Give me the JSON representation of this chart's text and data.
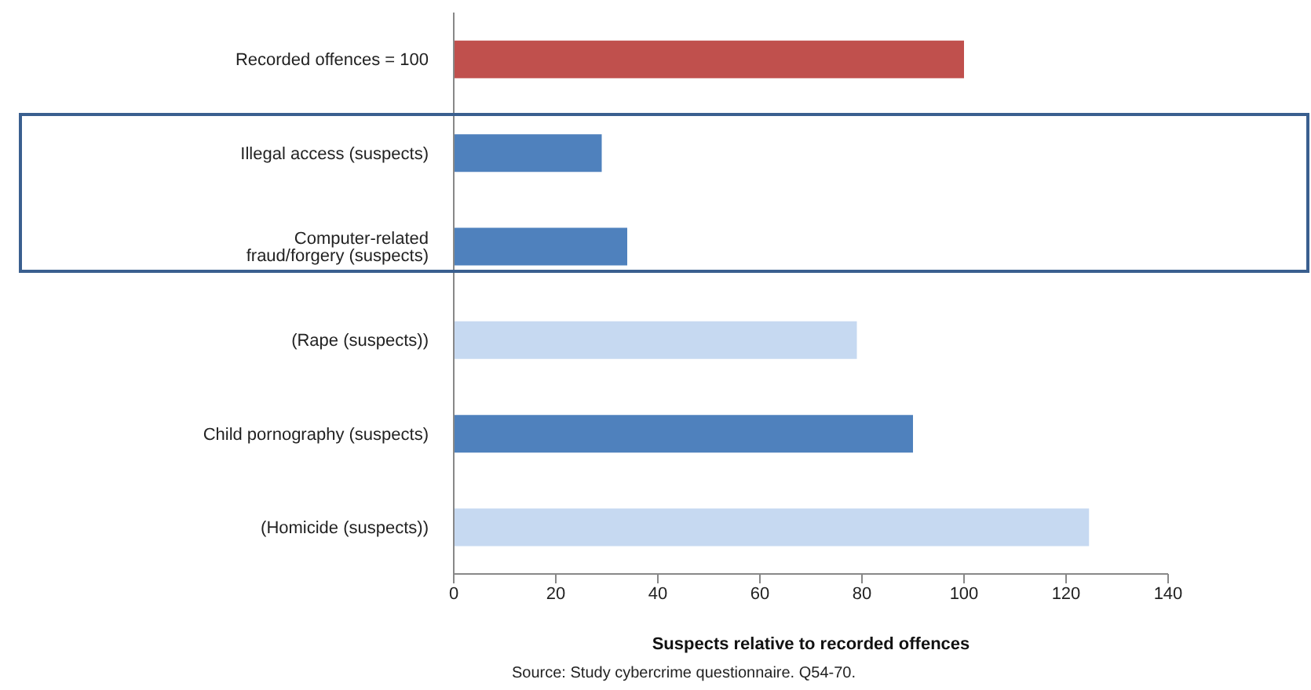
{
  "chart_data": {
    "type": "bar",
    "orientation": "horizontal",
    "categories": [
      "Recorded offences = 100",
      "Illegal access (suspects)",
      "Computer-related fraud/forgery (suspects)",
      "(Rape (suspects))",
      "Child pornography (suspects)",
      "(Homicide (suspects))"
    ],
    "values": [
      100,
      29,
      34,
      79,
      90,
      124.5
    ],
    "colors": [
      "#c0504d",
      "#4f81bd",
      "#4f81bd",
      "#c6d9f1",
      "#4f81bd",
      "#c6d9f1"
    ],
    "xlim": [
      0,
      140
    ],
    "xticks": [
      0,
      20,
      40,
      60,
      80,
      100,
      120,
      140
    ],
    "xlabel": "Suspects relative to recorded offences",
    "annotations": [
      "Source: Study cybercrime questionnaire. Q54-70."
    ],
    "grid": false,
    "legend": false
  }
}
